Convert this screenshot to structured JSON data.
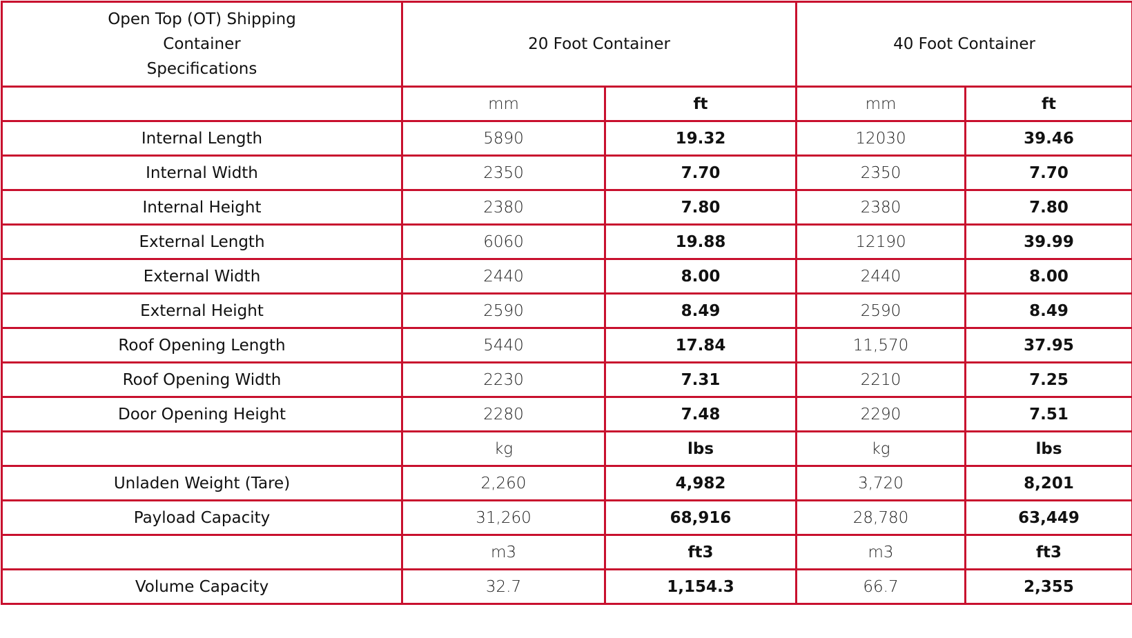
{
  "header": {
    "title_lines": [
      "Open Top (OT) Shipping",
      "Container",
      "Specifications"
    ],
    "col_20": "20 Foot Container",
    "col_40": "40 Foot Container"
  },
  "rows": [
    {
      "label": "",
      "v20a": "mm",
      "v20b": "ft",
      "v40a": "mm",
      "v40b": "ft"
    },
    {
      "label": "Internal Length",
      "v20a": "5890",
      "v20b": "19.32",
      "v40a": "12030",
      "v40b": "39.46"
    },
    {
      "label": "Internal Width",
      "v20a": "2350",
      "v20b": "7.70",
      "v40a": "2350",
      "v40b": "7.70"
    },
    {
      "label": "Internal Height",
      "v20a": "2380",
      "v20b": "7.80",
      "v40a": "2380",
      "v40b": "7.80"
    },
    {
      "label": "External Length",
      "v20a": "6060",
      "v20b": "19.88",
      "v40a": "12190",
      "v40b": "39.99"
    },
    {
      "label": "External Width",
      "v20a": "2440",
      "v20b": "8.00",
      "v40a": "2440",
      "v40b": "8.00"
    },
    {
      "label": "External Height",
      "v20a": "2590",
      "v20b": "8.49",
      "v40a": "2590",
      "v40b": "8.49"
    },
    {
      "label": "Roof Opening Length",
      "v20a": "5440",
      "v20b": "17.84",
      "v40a": "11,570",
      "v40b": "37.95"
    },
    {
      "label": "Roof Opening Width",
      "v20a": "2230",
      "v20b": "7.31",
      "v40a": "2210",
      "v40b": "7.25"
    },
    {
      "label": "Door Opening Height",
      "v20a": "2280",
      "v20b": "7.48",
      "v40a": "2290",
      "v40b": "7.51"
    },
    {
      "label": "",
      "v20a": "kg",
      "v20b": "lbs",
      "v40a": "kg",
      "v40b": "lbs"
    },
    {
      "label": "Unladen Weight (Tare)",
      "v20a": "2,260",
      "v20b": "4,982",
      "v40a": "3,720",
      "v40b": "8,201"
    },
    {
      "label": "Payload Capacity",
      "v20a": "31,260",
      "v20b": "68,916",
      "v40a": "28,780",
      "v40b": "63,449"
    },
    {
      "label": "",
      "v20a": "m3",
      "v20b": "ft3",
      "v40a": "m3",
      "v40b": "ft3"
    },
    {
      "label": "Volume Capacity",
      "v20a": "32.7",
      "v20b": "1,154.3",
      "v40a": "66.7",
      "v40b": "2,355"
    }
  ],
  "colors": {
    "border": "#c8102e"
  }
}
